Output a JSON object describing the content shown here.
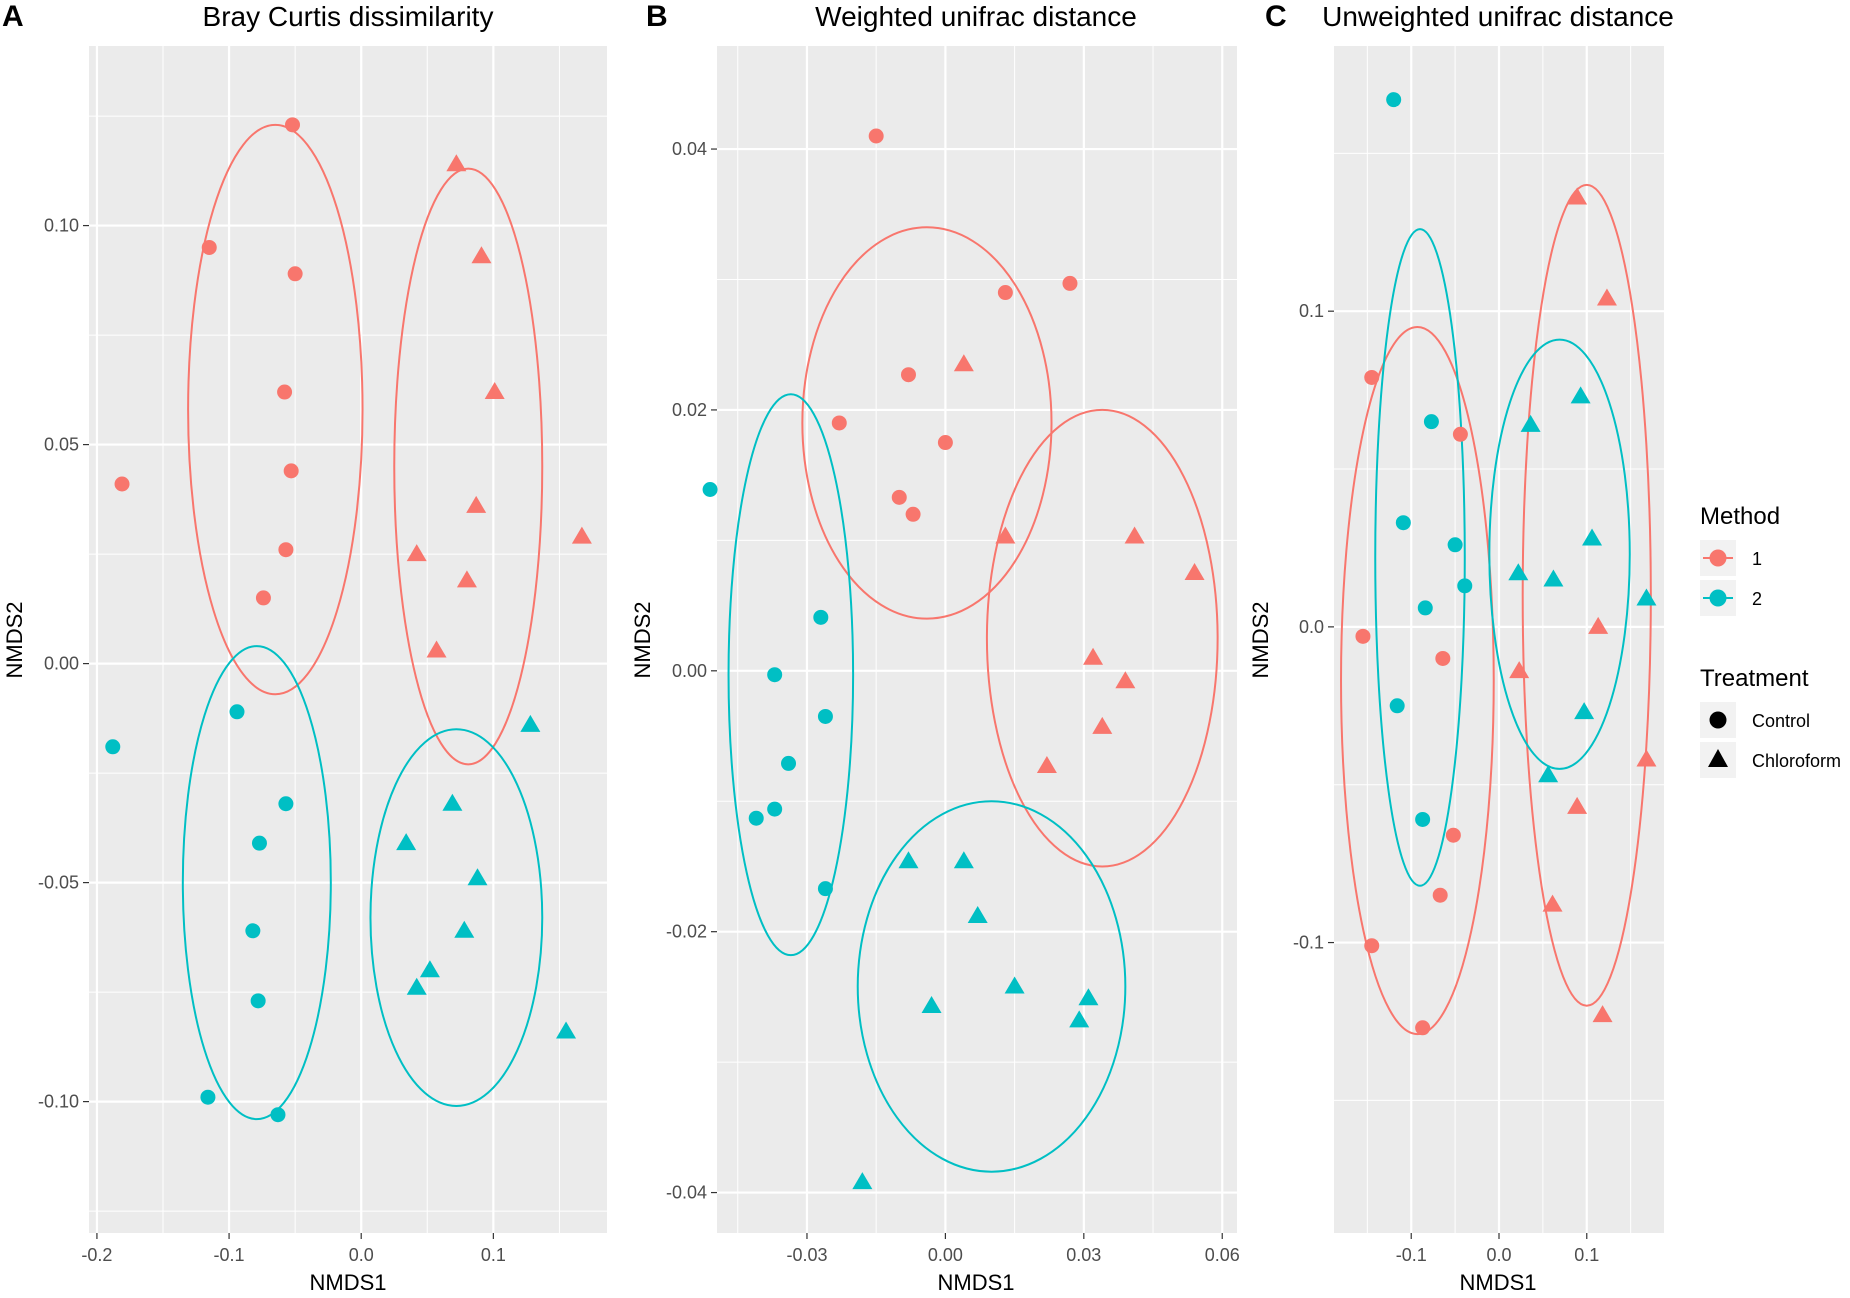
{
  "colors": {
    "method1": "#F8766D",
    "method2": "#00BFC4",
    "panel_bg": "#EBEBEB",
    "grid": "#FFFFFF",
    "tick_text": "#4D4D4D"
  },
  "legend": {
    "method_title": "Method",
    "method_items": [
      {
        "label": "1",
        "color": "#F8766D"
      },
      {
        "label": "2",
        "color": "#00BFC4"
      }
    ],
    "treatment_title": "Treatment",
    "treatment_items": [
      {
        "label": "Control",
        "shape": "circle"
      },
      {
        "label": "Chloroform",
        "shape": "triangle"
      }
    ]
  },
  "chart_data": [
    {
      "type": "scatter",
      "letter": "A",
      "title": "Bray Curtis dissimilarity",
      "xlabel": "NMDS1",
      "ylabel": "NMDS2",
      "xlim": [
        -0.206,
        0.186
      ],
      "ylim": [
        -0.13,
        0.141
      ],
      "xticks": [
        -0.2,
        -0.1,
        0.0,
        0.1
      ],
      "xtick_labels": [
        "-0.2",
        "-0.1",
        "0.0",
        "0.1"
      ],
      "yticks": [
        -0.1,
        -0.05,
        0.0,
        0.05,
        0.1
      ],
      "ytick_labels": [
        "-0.10",
        "-0.05",
        "0.00",
        "0.05",
        "0.10"
      ],
      "groups": [
        {
          "method": "1",
          "treatment": "Control",
          "points": [
            [
              -0.052,
              0.123
            ],
            [
              -0.115,
              0.095
            ],
            [
              -0.05,
              0.089
            ],
            [
              -0.058,
              0.062
            ],
            [
              -0.053,
              0.044
            ],
            [
              -0.057,
              0.026
            ],
            [
              -0.074,
              0.015
            ],
            [
              -0.181,
              0.041
            ]
          ]
        },
        {
          "method": "1",
          "treatment": "Chloroform",
          "points": [
            [
              0.072,
              0.114
            ],
            [
              0.091,
              0.093
            ],
            [
              0.101,
              0.062
            ],
            [
              0.087,
              0.036
            ],
            [
              0.042,
              0.025
            ],
            [
              0.08,
              0.019
            ],
            [
              0.057,
              0.003
            ],
            [
              0.167,
              0.029
            ]
          ]
        },
        {
          "method": "2",
          "treatment": "Control",
          "points": [
            [
              -0.188,
              -0.019
            ],
            [
              -0.094,
              -0.011
            ],
            [
              -0.057,
              -0.032
            ],
            [
              -0.077,
              -0.041
            ],
            [
              -0.082,
              -0.061
            ],
            [
              -0.078,
              -0.077
            ],
            [
              -0.116,
              -0.099
            ],
            [
              -0.063,
              -0.103
            ]
          ]
        },
        {
          "method": "2",
          "treatment": "Chloroform",
          "points": [
            [
              0.128,
              -0.014
            ],
            [
              0.069,
              -0.032
            ],
            [
              0.034,
              -0.041
            ],
            [
              0.088,
              -0.049
            ],
            [
              0.078,
              -0.061
            ],
            [
              0.052,
              -0.07
            ],
            [
              0.042,
              -0.074
            ],
            [
              0.155,
              -0.084
            ]
          ]
        }
      ],
      "ellipses": [
        {
          "method": "1",
          "treatment": "Control",
          "cx": -0.065,
          "cy": 0.058,
          "rx": 0.066,
          "ry": 0.065
        },
        {
          "method": "1",
          "treatment": "Chloroform",
          "cx": 0.081,
          "cy": 0.045,
          "rx": 0.056,
          "ry": 0.068
        },
        {
          "method": "2",
          "treatment": "Control",
          "cx": -0.079,
          "cy": -0.05,
          "rx": 0.056,
          "ry": 0.054
        },
        {
          "method": "2",
          "treatment": "Chloroform",
          "cx": 0.072,
          "cy": -0.058,
          "rx": 0.065,
          "ry": 0.043
        }
      ]
    },
    {
      "type": "scatter",
      "letter": "B",
      "title": "Weighted unifrac distance",
      "xlabel": "NMDS1",
      "ylabel": "NMDS2",
      "xlim": [
        -0.0495,
        0.0632
      ],
      "ylim": [
        -0.0431,
        0.0479
      ],
      "xticks": [
        -0.03,
        0.0,
        0.03,
        0.06
      ],
      "xtick_labels": [
        "-0.03",
        "0.00",
        "0.03",
        "0.06"
      ],
      "yticks": [
        -0.04,
        -0.02,
        0.0,
        0.02,
        0.04
      ],
      "ytick_labels": [
        "-0.04",
        "-0.02",
        "0.00",
        "0.02",
        "0.04"
      ],
      "groups": [
        {
          "method": "1",
          "treatment": "Control",
          "points": [
            [
              -0.015,
              0.041
            ],
            [
              0.013,
              0.029
            ],
            [
              0.027,
              0.0297
            ],
            [
              -0.008,
              0.0227
            ],
            [
              -0.023,
              0.019
            ],
            [
              0.0,
              0.0175
            ],
            [
              -0.01,
              0.0133
            ],
            [
              -0.007,
              0.012
            ]
          ]
        },
        {
          "method": "1",
          "treatment": "Chloroform",
          "points": [
            [
              0.004,
              0.0235
            ],
            [
              0.013,
              0.0103
            ],
            [
              0.041,
              0.0103
            ],
            [
              0.054,
              0.0075
            ],
            [
              0.032,
              0.001
            ],
            [
              0.039,
              -0.0008
            ],
            [
              0.034,
              -0.0043
            ],
            [
              0.022,
              -0.0073
            ]
          ]
        },
        {
          "method": "2",
          "treatment": "Control",
          "points": [
            [
              -0.051,
              0.0139
            ],
            [
              -0.027,
              0.0041
            ],
            [
              -0.037,
              -0.0003
            ],
            [
              -0.026,
              -0.0035
            ],
            [
              -0.034,
              -0.0071
            ],
            [
              -0.037,
              -0.0106
            ],
            [
              -0.041,
              -0.0113
            ],
            [
              -0.026,
              -0.0167
            ]
          ]
        },
        {
          "method": "2",
          "treatment": "Chloroform",
          "points": [
            [
              -0.008,
              -0.0146
            ],
            [
              0.004,
              -0.0146
            ],
            [
              0.007,
              -0.0188
            ],
            [
              0.015,
              -0.0242
            ],
            [
              0.031,
              -0.0251
            ],
            [
              -0.003,
              -0.0257
            ],
            [
              0.029,
              -0.0268
            ],
            [
              -0.018,
              -0.0392
            ]
          ]
        }
      ],
      "ellipses": [
        {
          "method": "1",
          "treatment": "Control",
          "cx": -0.004,
          "cy": 0.019,
          "rx": 0.027,
          "ry": 0.015
        },
        {
          "method": "1",
          "treatment": "Chloroform",
          "cx": 0.034,
          "cy": 0.0025,
          "rx": 0.025,
          "ry": 0.0175
        },
        {
          "method": "2",
          "treatment": "Control",
          "cx": -0.0335,
          "cy": -0.0003,
          "rx": 0.0135,
          "ry": 0.0215
        },
        {
          "method": "2",
          "treatment": "Chloroform",
          "cx": 0.01,
          "cy": -0.0242,
          "rx": 0.029,
          "ry": 0.0142
        }
      ]
    },
    {
      "type": "scatter",
      "letter": "C",
      "title": "Unweighted unifrac distance",
      "xlabel": "NMDS1",
      "ylabel": "NMDS2",
      "xlim": [
        -0.188,
        0.188
      ],
      "ylim": [
        -0.192,
        0.184
      ],
      "xticks": [
        -0.1,
        0.0,
        0.1
      ],
      "xtick_labels": [
        "-0.1",
        "0.0",
        "0.1"
      ],
      "yticks": [
        -0.1,
        0.0,
        0.1
      ],
      "ytick_labels": [
        "-0.1",
        "0.0",
        "0.1"
      ],
      "groups": [
        {
          "method": "1",
          "treatment": "Control",
          "points": [
            [
              -0.145,
              0.079
            ],
            [
              -0.044,
              0.061
            ],
            [
              -0.155,
              -0.003
            ],
            [
              -0.064,
              -0.01
            ],
            [
              -0.052,
              -0.066
            ],
            [
              -0.067,
              -0.085
            ],
            [
              -0.145,
              -0.101
            ],
            [
              -0.087,
              -0.127
            ]
          ]
        },
        {
          "method": "1",
          "treatment": "Chloroform",
          "points": [
            [
              0.089,
              0.136
            ],
            [
              0.123,
              0.104
            ],
            [
              0.113,
              0.0
            ],
            [
              0.023,
              -0.014
            ],
            [
              0.168,
              -0.042
            ],
            [
              0.089,
              -0.057
            ],
            [
              0.061,
              -0.088
            ],
            [
              0.118,
              -0.123
            ]
          ]
        },
        {
          "method": "2",
          "treatment": "Control",
          "points": [
            [
              -0.12,
              0.167
            ],
            [
              -0.077,
              0.065
            ],
            [
              -0.109,
              0.033
            ],
            [
              -0.05,
              0.026
            ],
            [
              -0.039,
              0.013
            ],
            [
              -0.084,
              0.006
            ],
            [
              -0.116,
              -0.025
            ],
            [
              -0.087,
              -0.061
            ]
          ]
        },
        {
          "method": "2",
          "treatment": "Chloroform",
          "points": [
            [
              0.036,
              0.064
            ],
            [
              0.093,
              0.073
            ],
            [
              0.106,
              0.028
            ],
            [
              0.022,
              0.017
            ],
            [
              0.062,
              0.015
            ],
            [
              0.168,
              0.009
            ],
            [
              0.097,
              -0.027
            ],
            [
              0.056,
              -0.047
            ]
          ]
        }
      ],
      "ellipses": [
        {
          "method": "1",
          "treatment": "Control",
          "cx": -0.093,
          "cy": -0.017,
          "rx": 0.087,
          "ry": 0.112
        },
        {
          "method": "1",
          "treatment": "Chloroform",
          "cx": 0.1,
          "cy": 0.01,
          "rx": 0.073,
          "ry": 0.13
        },
        {
          "method": "2",
          "treatment": "Control",
          "cx": -0.09,
          "cy": 0.022,
          "rx": 0.051,
          "ry": 0.104
        },
        {
          "method": "2",
          "treatment": "Chloroform",
          "cx": 0.069,
          "cy": 0.023,
          "rx": 0.08,
          "ry": 0.068
        }
      ]
    }
  ]
}
